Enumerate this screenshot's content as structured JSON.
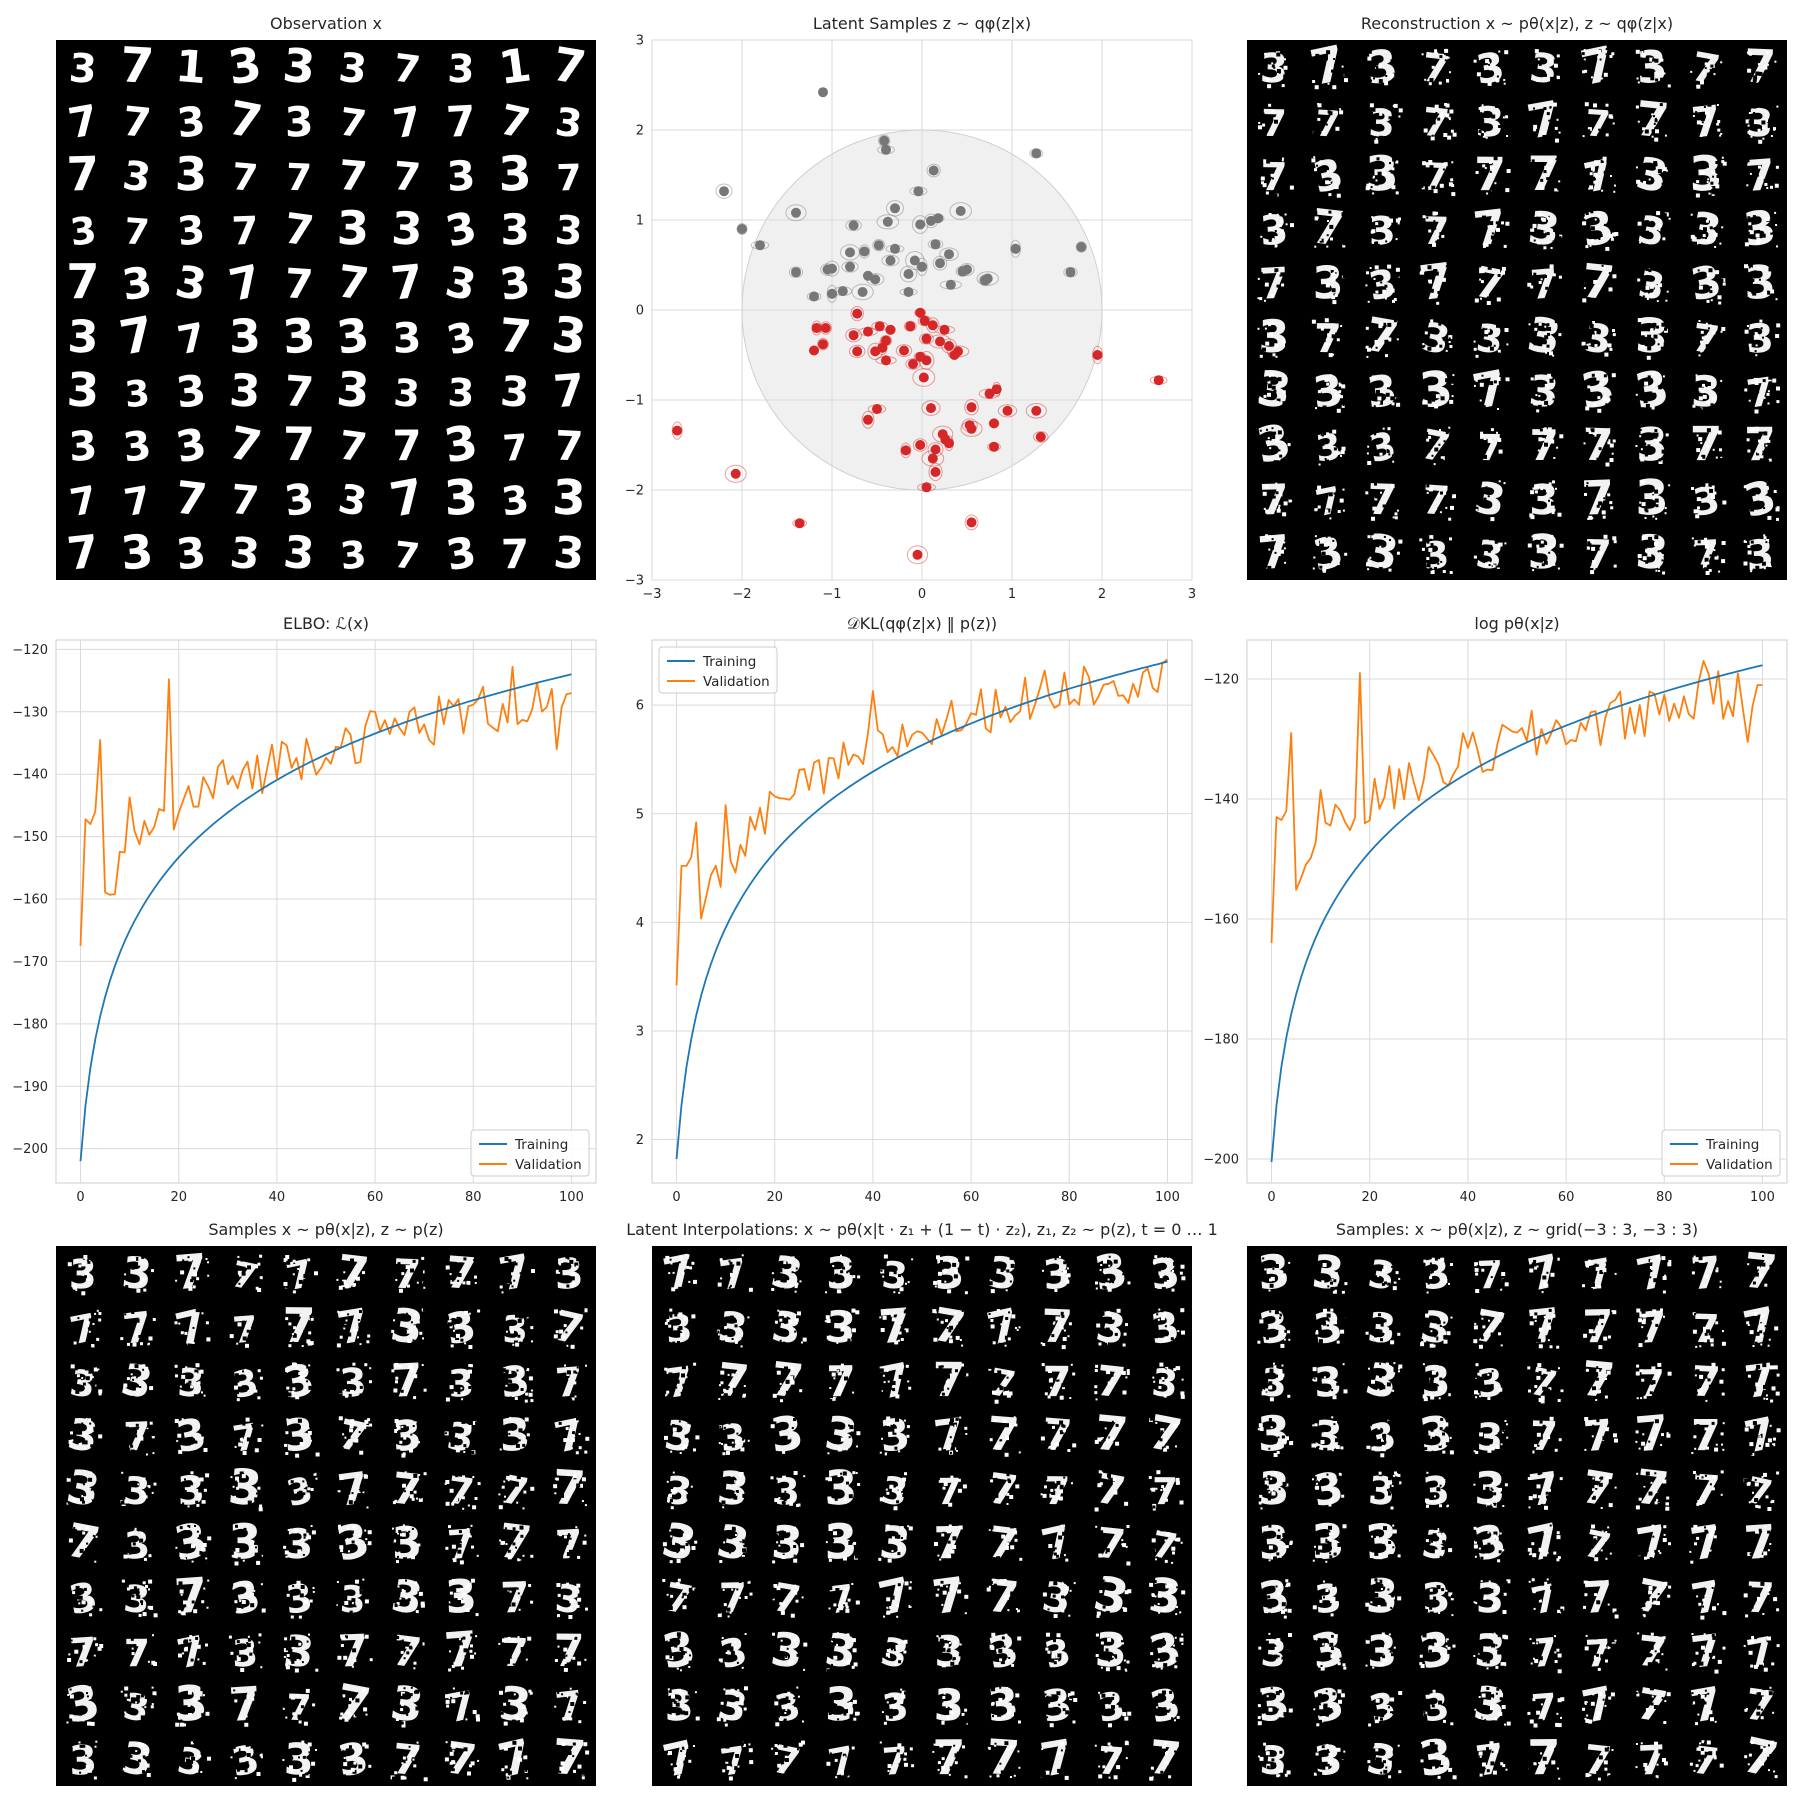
{
  "panels": {
    "observation": {
      "title": "Observation x",
      "style": "smooth"
    },
    "reconstruction": {
      "title": "Reconstruction x ~ pθ(x|z), z ~ qφ(z|x)",
      "style": "noisy"
    },
    "samples": {
      "title": "Samples x ~ pθ(x|z), z ~ p(z)",
      "style": "noisy"
    },
    "interpolations": {
      "title": "Latent Interpolations: x ~ pθ(x|t · z₁ + (1 − t) · z₂), z₁, z₂ ~ p(z), t = 0 … 1",
      "style": "noisy"
    },
    "grid": {
      "title": "Samples: x ~ pθ(x|z), z ~ grid(−3 : 3, −3 : 3)",
      "style": "noisy"
    }
  },
  "digit_grids": {
    "observation": [
      "3713337317",
      "7737377773",
      "7337777337",
      "3737733333",
      "7337777333",
      "3773333373",
      "3333733337",
      "3337777377",
      "7777337333",
      "7333337373"
    ],
    "reconstruction": [
      "3737337377",
      "7737377773",
      "7337777337",
      "3737733333",
      "7337777333",
      "3773333373",
      "3333733337",
      "3337777377",
      "7777337333",
      "7333337373"
    ],
    "samples": [
      "3377777773",
      "7777773337",
      "3333337337",
      "3737373337",
      "3333377777",
      "7333333777",
      "3373333373",
      "7773377777",
      "3337773737",
      "3333337777"
    ],
    "interpolations": [
      "7733333333",
      "3333777733",
      "7777777773",
      "3333377777",
      "3333377777",
      "3333377777",
      "7777777333",
      "3333333333",
      "3333333333",
      "7777777777"
    ],
    "grid": [
      "3333777777",
      "3333777777",
      "3333377777",
      "3333377777",
      "3333377777",
      "3333377777",
      "3333377777",
      "3333377777",
      "3333377777",
      "3333777777"
    ]
  },
  "chart_data": [
    {
      "type": "scatter",
      "title": "Latent Samples z ~ qφ(z|x)",
      "xlim": [
        -3,
        3
      ],
      "ylim": [
        -3,
        3
      ],
      "xticks": [
        "−3",
        "−2",
        "−1",
        "0",
        "1",
        "2",
        "3"
      ],
      "yticks": [
        "−3",
        "−2",
        "−1",
        "0",
        "1",
        "2",
        "3"
      ],
      "grid": true,
      "prior_circle_radius": 2,
      "series": [
        {
          "color": "#777777",
          "points": [
            [
              -1.1,
              2.42
            ],
            [
              -0.42,
              1.88
            ],
            [
              -0.4,
              1.78
            ],
            [
              -2.2,
              1.32
            ],
            [
              -0.04,
              1.32
            ],
            [
              0.13,
              1.55
            ],
            [
              1.27,
              1.74
            ],
            [
              -1.4,
              1.08
            ],
            [
              -0.3,
              1.13
            ],
            [
              0.43,
              1.1
            ],
            [
              -0.76,
              0.94
            ],
            [
              -0.38,
              0.98
            ],
            [
              0.1,
              0.99
            ],
            [
              0.18,
              1.02
            ],
            [
              -0.02,
              0.95
            ],
            [
              -2.0,
              0.9
            ],
            [
              -1.8,
              0.72
            ],
            [
              -1.0,
              0.46
            ],
            [
              -1.05,
              0.45
            ],
            [
              -0.8,
              0.64
            ],
            [
              -0.64,
              0.65
            ],
            [
              -0.48,
              0.72
            ],
            [
              -0.3,
              0.68
            ],
            [
              -0.08,
              0.55
            ],
            [
              0.15,
              0.73
            ],
            [
              0.3,
              0.62
            ],
            [
              0.5,
              0.45
            ],
            [
              0.73,
              0.35
            ],
            [
              -1.4,
              0.42
            ],
            [
              -0.8,
              0.48
            ],
            [
              -0.6,
              0.38
            ],
            [
              -0.52,
              0.34
            ],
            [
              -0.35,
              0.55
            ],
            [
              -0.15,
              0.4
            ],
            [
              0.0,
              0.48
            ],
            [
              0.2,
              0.52
            ],
            [
              0.32,
              0.28
            ],
            [
              0.45,
              0.43
            ],
            [
              0.7,
              0.33
            ],
            [
              1.04,
              0.68
            ],
            [
              1.65,
              0.42
            ],
            [
              1.77,
              0.7
            ],
            [
              -1.2,
              0.15
            ],
            [
              -1.0,
              0.18
            ],
            [
              -0.88,
              0.21
            ],
            [
              -0.66,
              0.2
            ],
            [
              -0.15,
              0.2
            ]
          ]
        },
        {
          "color": "#d62728",
          "points": [
            [
              -0.72,
              -0.04
            ],
            [
              -0.02,
              -0.03
            ],
            [
              0.03,
              -0.12
            ],
            [
              -1.17,
              -0.2
            ],
            [
              -1.07,
              -0.2
            ],
            [
              -0.6,
              -0.24
            ],
            [
              -0.47,
              -0.18
            ],
            [
              -0.35,
              -0.22
            ],
            [
              -0.13,
              -0.18
            ],
            [
              0.12,
              -0.17
            ],
            [
              0.25,
              -0.22
            ],
            [
              -0.76,
              -0.28
            ],
            [
              -0.4,
              -0.34
            ],
            [
              0.05,
              -0.32
            ],
            [
              -1.2,
              -0.45
            ],
            [
              -1.1,
              -0.38
            ],
            [
              -0.72,
              -0.46
            ],
            [
              -0.52,
              -0.46
            ],
            [
              -0.44,
              -0.42
            ],
            [
              -0.2,
              -0.45
            ],
            [
              0.2,
              -0.35
            ],
            [
              0.3,
              -0.4
            ],
            [
              0.4,
              -0.46
            ],
            [
              0.36,
              -0.5
            ],
            [
              -0.4,
              -0.56
            ],
            [
              -0.1,
              -0.6
            ],
            [
              -0.02,
              -0.52
            ],
            [
              0.05,
              -0.56
            ],
            [
              0.02,
              -0.75
            ],
            [
              1.95,
              -0.5
            ],
            [
              2.63,
              -0.78
            ],
            [
              0.83,
              -0.88
            ],
            [
              0.75,
              -0.93
            ],
            [
              -0.5,
              -1.1
            ],
            [
              -0.6,
              -1.22
            ],
            [
              0.1,
              -1.09
            ],
            [
              0.55,
              -1.08
            ],
            [
              0.95,
              -1.12
            ],
            [
              1.27,
              -1.12
            ],
            [
              0.53,
              -1.28
            ],
            [
              0.55,
              -1.32
            ],
            [
              0.8,
              -1.26
            ],
            [
              0.23,
              -1.38
            ],
            [
              0.26,
              -1.44
            ],
            [
              1.32,
              -1.41
            ],
            [
              -2.72,
              -1.34
            ],
            [
              -0.02,
              -1.5
            ],
            [
              0.3,
              -1.48
            ],
            [
              0.8,
              -1.52
            ],
            [
              -0.18,
              -1.56
            ],
            [
              0.15,
              -1.55
            ],
            [
              0.12,
              -1.65
            ],
            [
              0.15,
              -1.8
            ],
            [
              0.05,
              -1.97
            ],
            [
              -2.07,
              -1.82
            ],
            [
              -1.36,
              -2.37
            ],
            [
              0.55,
              -2.36
            ],
            [
              -0.05,
              -2.72
            ]
          ]
        }
      ]
    },
    {
      "type": "line",
      "title": "ELBO: ℒ(x)",
      "xlim": [
        -5,
        105
      ],
      "ylim": [
        -205.5,
        -118.5
      ],
      "xticks": [
        0,
        20,
        40,
        60,
        80,
        100
      ],
      "yticks": [
        -200,
        -190,
        -180,
        -170,
        -160,
        -150,
        -140,
        -130,
        -120
      ],
      "yticklabels": [
        "−200",
        "−190",
        "−180",
        "−170",
        "−160",
        "−150",
        "−140",
        "−130",
        "−120"
      ],
      "grid": true,
      "legend_position": "bottom-right",
      "series": [
        {
          "name": "Training",
          "color": "#1f77b4",
          "kind": "log",
          "start": -202,
          "end": -124,
          "alpha": 60
        },
        {
          "name": "Validation",
          "color": "#ff7f0e",
          "kind": "val",
          "start": -167.5,
          "end": -127,
          "base_end": -127.5,
          "amp": 4.2,
          "extremes": {
            "1": -147.2,
            "2": -148,
            "3": -146,
            "4": -134.5,
            "10": -143.7,
            "18": -124.8,
            "28": -138.8,
            "43": -139,
            "88": -122.8,
            "97": -136,
            "99": -127.2
          }
        }
      ]
    },
    {
      "type": "line",
      "title": "𝒟KL(qφ(z|x) ‖ p(z))",
      "xlim": [
        -5,
        105
      ],
      "ylim": [
        1.6,
        6.6
      ],
      "xticks": [
        0,
        20,
        40,
        60,
        80,
        100
      ],
      "yticks": [
        2,
        3,
        4,
        5,
        6
      ],
      "yticklabels": [
        "2",
        "3",
        "4",
        "5",
        "6"
      ],
      "grid": true,
      "legend_position": "top-left",
      "series": [
        {
          "name": "Training",
          "color": "#1f77b4",
          "kind": "log",
          "start": 1.82,
          "end": 6.4,
          "alpha": 55
        },
        {
          "name": "Validation",
          "color": "#ff7f0e",
          "kind": "val",
          "start": 3.42,
          "end": 6.42,
          "base_end": 6.35,
          "amp": 0.22,
          "extremes": {
            "1": 4.52,
            "2": 4.52,
            "3": 4.6,
            "4": 4.92,
            "10": 5.08,
            "24": 5.18,
            "35": 5.45,
            "40": 6.13,
            "92": 6.02,
            "98": 6.12,
            "100": 6.42
          }
        }
      ]
    },
    {
      "type": "line",
      "title": "log pθ(x|z)",
      "xlim": [
        -5,
        105
      ],
      "ylim": [
        -204,
        -113.5
      ],
      "xticks": [
        0,
        20,
        40,
        60,
        80,
        100
      ],
      "yticks": [
        -200,
        -180,
        -160,
        -140,
        -120
      ],
      "yticklabels": [
        "−200",
        "−180",
        "−160",
        "−140",
        "−120"
      ],
      "grid": true,
      "legend_position": "bottom-right",
      "series": [
        {
          "name": "Training",
          "color": "#1f77b4",
          "kind": "log",
          "start": -200.5,
          "end": -117.7,
          "alpha": 60
        },
        {
          "name": "Validation",
          "color": "#ff7f0e",
          "kind": "val",
          "start": -164,
          "end": -121,
          "base_end": -122,
          "amp": 4.5,
          "extremes": {
            "1": -143,
            "2": -143.5,
            "3": -142,
            "4": -129,
            "10": -138.5,
            "18": -119,
            "28": -134,
            "43": -135.5,
            "88": -117,
            "97": -130.5,
            "99": -121
          }
        }
      ]
    }
  ]
}
